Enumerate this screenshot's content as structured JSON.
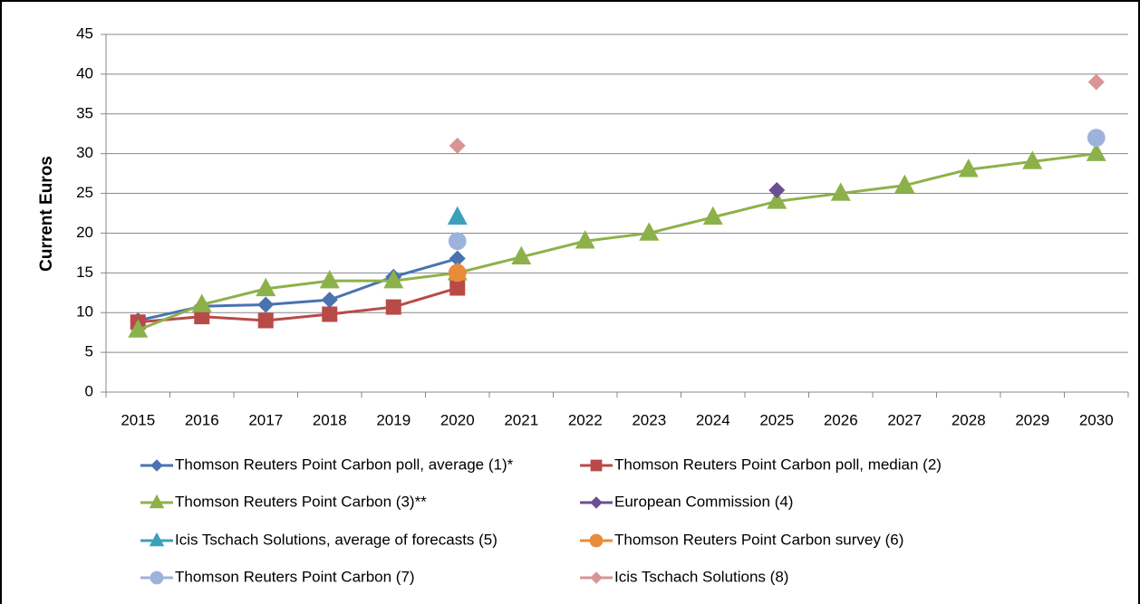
{
  "chart_data": {
    "type": "line",
    "ylabel": "Current Euros",
    "categories": [
      "2015",
      "2016",
      "2017",
      "2018",
      "2019",
      "2020",
      "2021",
      "2022",
      "2023",
      "2024",
      "2025",
      "2026",
      "2027",
      "2028",
      "2029",
      "2030"
    ],
    "ylim": [
      0,
      45
    ],
    "yticks": [
      0,
      5,
      10,
      15,
      20,
      25,
      30,
      35,
      40,
      45
    ],
    "grid": true,
    "legend": "bottom",
    "series": [
      {
        "name": "Thomson Reuters Point Carbon poll, average (1)*",
        "color": "#4a72b0",
        "marker": "diamond",
        "values": [
          9,
          10.8,
          11,
          11.6,
          14.5,
          16.8,
          null,
          null,
          null,
          null,
          null,
          null,
          null,
          null,
          null,
          null
        ]
      },
      {
        "name": "Thomson Reuters Point Carbon poll, median (2)",
        "color": "#b84a48",
        "marker": "square",
        "values": [
          8.8,
          9.5,
          9,
          9.8,
          10.7,
          13.1,
          null,
          null,
          null,
          null,
          null,
          null,
          null,
          null,
          null,
          null
        ]
      },
      {
        "name": "Thomson Reuters Point Carbon (3)**",
        "color": "#8db14a",
        "marker": "triangle",
        "values": [
          7.8,
          11,
          13,
          14,
          14,
          15,
          17,
          19,
          20,
          22,
          24,
          25,
          26,
          28,
          29,
          30
        ]
      },
      {
        "name": "European Commission (4)",
        "color": "#6a4f93",
        "marker": "diamond",
        "values": [
          null,
          null,
          null,
          null,
          null,
          null,
          null,
          null,
          null,
          null,
          25.4,
          null,
          null,
          null,
          null,
          null
        ]
      },
      {
        "name": "Icis Tschach Solutions, average of forecasts (5)",
        "color": "#3ba1b9",
        "marker": "triangle",
        "values": [
          null,
          null,
          null,
          null,
          null,
          22,
          null,
          null,
          null,
          null,
          null,
          null,
          null,
          null,
          null,
          null
        ]
      },
      {
        "name": "Thomson Reuters Point Carbon survey (6)",
        "color": "#e98b3a",
        "marker": "circle",
        "values": [
          null,
          null,
          null,
          null,
          null,
          15,
          null,
          null,
          null,
          null,
          null,
          null,
          null,
          null,
          null,
          null
        ]
      },
      {
        "name": "Thomson Reuters Point Carbon (7)",
        "color": "#9db3db",
        "marker": "circle",
        "values": [
          null,
          null,
          null,
          null,
          null,
          19,
          null,
          null,
          null,
          null,
          null,
          null,
          null,
          null,
          null,
          32
        ]
      },
      {
        "name": "Icis Tschach Solutions (8)",
        "color": "#d99594",
        "marker": "diamond",
        "values": [
          null,
          null,
          null,
          null,
          null,
          31,
          null,
          null,
          null,
          null,
          null,
          null,
          null,
          null,
          null,
          39
        ]
      }
    ]
  }
}
